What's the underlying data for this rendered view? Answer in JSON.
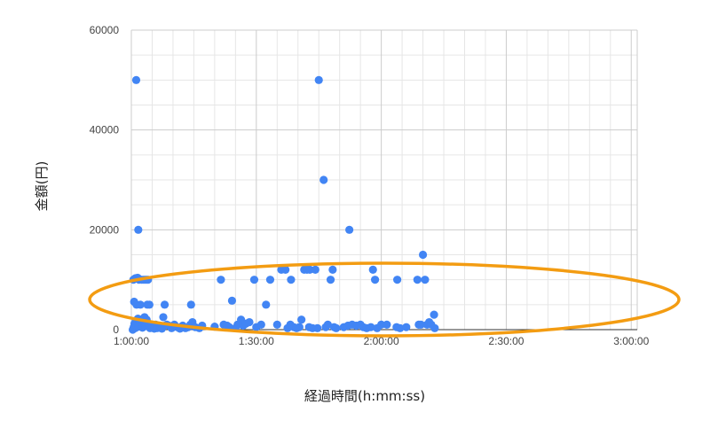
{
  "chart_data": {
    "type": "scatter",
    "title": "",
    "xlabel": "経過時間(h:mm:ss)",
    "ylabel": "金額(円)",
    "xlim": [
      "1:00:00",
      "3:00:00"
    ],
    "ylim": [
      0,
      60000
    ],
    "xticks": [
      "1:00:00",
      "1:30:00",
      "2:00:00",
      "2:30:00",
      "3:00:00"
    ],
    "yticks": [
      "0",
      "20000",
      "40000",
      "60000"
    ],
    "grid": true,
    "legend": "none",
    "colors": {
      "points": "#4285f4",
      "highlight": "#f39c12"
    },
    "annotation": {
      "shape": "ellipse",
      "color": "#f39c12",
      "label": ""
    },
    "series": [
      {
        "points": [
          [
            "1:00:30",
            10000
          ],
          [
            "1:00:40",
            5600
          ],
          [
            "1:00:50",
            10200
          ],
          [
            "1:01:00",
            10300
          ],
          [
            "1:01:10",
            50000
          ],
          [
            "1:01:15",
            5000
          ],
          [
            "1:01:30",
            10400
          ],
          [
            "1:01:40",
            20000
          ],
          [
            "1:01:50",
            10000
          ],
          [
            "1:02:10",
            5000
          ],
          [
            "1:02:30",
            10000
          ],
          [
            "1:03:00",
            10000
          ],
          [
            "1:03:30",
            10000
          ],
          [
            "1:03:50",
            5000
          ],
          [
            "1:04:00",
            10000
          ],
          [
            "1:04:20",
            5000
          ],
          [
            "1:00:20",
            0
          ],
          [
            "1:00:35",
            500
          ],
          [
            "1:00:45",
            1200
          ],
          [
            "1:00:55",
            300
          ],
          [
            "1:01:05",
            1800
          ],
          [
            "1:01:20",
            800
          ],
          [
            "1:01:35",
            2200
          ],
          [
            "1:01:45",
            600
          ],
          [
            "1:02:00",
            1500
          ],
          [
            "1:02:20",
            2000
          ],
          [
            "1:02:40",
            400
          ],
          [
            "1:02:50",
            1000
          ],
          [
            "1:03:10",
            2500
          ],
          [
            "1:03:20",
            700
          ],
          [
            "1:03:40",
            2000
          ],
          [
            "1:04:10",
            1200
          ],
          [
            "1:04:30",
            300
          ],
          [
            "1:04:50",
            800
          ],
          [
            "1:05:10",
            500
          ],
          [
            "1:05:30",
            200
          ],
          [
            "1:05:50",
            1000
          ],
          [
            "1:06:10",
            300
          ],
          [
            "1:06:30",
            800
          ],
          [
            "1:07:00",
            500
          ],
          [
            "1:07:20",
            200
          ],
          [
            "1:07:40",
            2500
          ],
          [
            "1:08:00",
            5000
          ],
          [
            "1:08:30",
            1000
          ],
          [
            "1:09:00",
            800
          ],
          [
            "1:09:40",
            300
          ],
          [
            "1:10:20",
            1000
          ],
          [
            "1:11:00",
            500
          ],
          [
            "1:11:40",
            200
          ],
          [
            "1:12:20",
            800
          ],
          [
            "1:13:00",
            300
          ],
          [
            "1:13:40",
            500
          ],
          [
            "1:14:10",
            1000
          ],
          [
            "1:14:20",
            5000
          ],
          [
            "1:14:40",
            1500
          ],
          [
            "1:15:20",
            500
          ],
          [
            "1:16:20",
            300
          ],
          [
            "1:17:00",
            800
          ],
          [
            "1:20:00",
            600
          ],
          [
            "1:21:30",
            10000
          ],
          [
            "1:22:10",
            1000
          ],
          [
            "1:23:00",
            800
          ],
          [
            "1:23:30",
            500
          ],
          [
            "1:24:10",
            5800
          ],
          [
            "1:25:00",
            300
          ],
          [
            "1:25:30",
            1000
          ],
          [
            "1:26:20",
            2000
          ],
          [
            "1:26:50",
            800
          ],
          [
            "1:27:30",
            1200
          ],
          [
            "1:28:20",
            1500
          ],
          [
            "1:29:30",
            10000
          ],
          [
            "1:30:00",
            500
          ],
          [
            "1:31:10",
            1000
          ],
          [
            "1:32:20",
            5000
          ],
          [
            "1:33:20",
            10000
          ],
          [
            "1:35:00",
            1000
          ],
          [
            "1:36:00",
            12000
          ],
          [
            "1:37:00",
            12000
          ],
          [
            "1:37:30",
            300
          ],
          [
            "1:38:10",
            1000
          ],
          [
            "1:38:20",
            10000
          ],
          [
            "1:39:00",
            500
          ],
          [
            "1:39:40",
            300
          ],
          [
            "1:40:20",
            500
          ],
          [
            "1:40:50",
            2000
          ],
          [
            "1:41:30",
            12000
          ],
          [
            "1:42:10",
            12000
          ],
          [
            "1:42:40",
            500
          ],
          [
            "1:42:50",
            12000
          ],
          [
            "1:43:30",
            300
          ],
          [
            "1:44:10",
            12000
          ],
          [
            "1:44:40",
            300
          ],
          [
            "1:45:00",
            50000
          ],
          [
            "1:46:10",
            30000
          ],
          [
            "1:46:40",
            500
          ],
          [
            "1:47:10",
            1000
          ],
          [
            "1:47:50",
            10000
          ],
          [
            "1:48:20",
            12000
          ],
          [
            "1:48:40",
            500
          ],
          [
            "1:49:10",
            300
          ],
          [
            "1:51:00",
            500
          ],
          [
            "1:52:00",
            800
          ],
          [
            "1:52:20",
            20000
          ],
          [
            "1:53:00",
            1000
          ],
          [
            "1:54:00",
            800
          ],
          [
            "1:55:00",
            1000
          ],
          [
            "1:55:40",
            500
          ],
          [
            "1:56:30",
            300
          ],
          [
            "1:57:30",
            500
          ],
          [
            "1:58:00",
            12000
          ],
          [
            "1:58:30",
            10000
          ],
          [
            "1:59:00",
            300
          ],
          [
            "2:00:00",
            1000
          ],
          [
            "2:01:20",
            1000
          ],
          [
            "2:03:40",
            500
          ],
          [
            "2:03:50",
            10000
          ],
          [
            "2:04:30",
            300
          ],
          [
            "2:06:00",
            500
          ],
          [
            "2:08:40",
            10000
          ],
          [
            "2:09:00",
            1000
          ],
          [
            "2:09:30",
            1000
          ],
          [
            "2:10:00",
            15000
          ],
          [
            "2:10:30",
            10000
          ],
          [
            "2:11:00",
            1000
          ],
          [
            "2:11:30",
            1500
          ],
          [
            "2:12:00",
            1000
          ],
          [
            "2:12:40",
            3000
          ],
          [
            "2:12:50",
            300
          ]
        ]
      }
    ]
  }
}
